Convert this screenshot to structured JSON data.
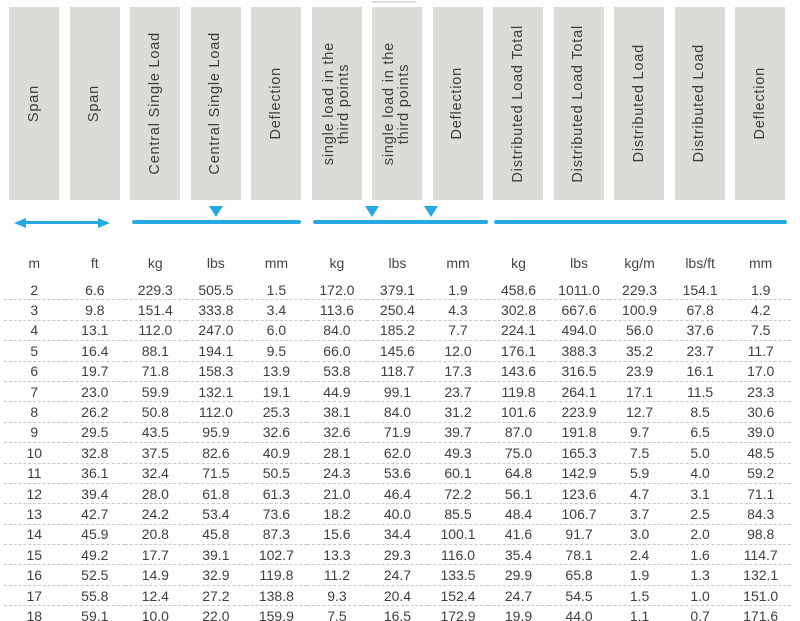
{
  "colors": {
    "header_box": "#dcdbd8",
    "accent_blue": "#29a9e1",
    "text": "#404040",
    "row_divider": "#c9c9c9"
  },
  "diagrams": {
    "span": "double-arrow",
    "central_single_load": "beam-line-with-center-load-marker",
    "third_point_load": "beam-line-with-two-third-point-markers",
    "distributed_load": "beam-line"
  },
  "table": {
    "columns": [
      {
        "header": "Span",
        "unit": "m"
      },
      {
        "header": "Span",
        "unit": "ft"
      },
      {
        "header": "Central Single Load",
        "unit": "kg"
      },
      {
        "header": "Central Single Load",
        "unit": "lbs"
      },
      {
        "header": "Deflection",
        "unit": "mm"
      },
      {
        "header": "single load in the\nthird points",
        "unit": "kg"
      },
      {
        "header": "single load in the\nthird points",
        "unit": "lbs"
      },
      {
        "header": "Deflection",
        "unit": "mm"
      },
      {
        "header": "Distributed Load Total",
        "unit": "kg"
      },
      {
        "header": "Distributed Load Total",
        "unit": "lbs"
      },
      {
        "header": "Distributed Load",
        "unit": "kg/m"
      },
      {
        "header": "Distributed Load",
        "unit": "lbs/ft"
      },
      {
        "header": "Deflection",
        "unit": "mm"
      }
    ],
    "rows": [
      [
        "2",
        "6.6",
        "229.3",
        "505.5",
        "1.5",
        "172.0",
        "379.1",
        "1.9",
        "458.6",
        "1011.0",
        "229.3",
        "154.1",
        "1.9"
      ],
      [
        "3",
        "9.8",
        "151.4",
        "333.8",
        "3.4",
        "113.6",
        "250.4",
        "4.3",
        "302.8",
        "667.6",
        "100.9",
        "67.8",
        "4.2"
      ],
      [
        "4",
        "13.1",
        "112.0",
        "247.0",
        "6.0",
        "84.0",
        "185.2",
        "7.7",
        "224.1",
        "494.0",
        "56.0",
        "37.6",
        "7.5"
      ],
      [
        "5",
        "16.4",
        "88.1",
        "194.1",
        "9.5",
        "66.0",
        "145.6",
        "12.0",
        "176.1",
        "388.3",
        "35.2",
        "23.7",
        "11.7"
      ],
      [
        "6",
        "19.7",
        "71.8",
        "158.3",
        "13.9",
        "53.8",
        "118.7",
        "17.3",
        "143.6",
        "316.5",
        "23.9",
        "16.1",
        "17.0"
      ],
      [
        "7",
        "23.0",
        "59.9",
        "132.1",
        "19.1",
        "44.9",
        "99.1",
        "23.7",
        "119.8",
        "264.1",
        "17.1",
        "11.5",
        "23.3"
      ],
      [
        "8",
        "26.2",
        "50.8",
        "112.0",
        "25.3",
        "38.1",
        "84.0",
        "31.2",
        "101.6",
        "223.9",
        "12.7",
        "8.5",
        "30.6"
      ],
      [
        "9",
        "29.5",
        "43.5",
        "95.9",
        "32.6",
        "32.6",
        "71.9",
        "39.7",
        "87.0",
        "191.8",
        "9.7",
        "6.5",
        "39.0"
      ],
      [
        "10",
        "32.8",
        "37.5",
        "82.6",
        "40.9",
        "28.1",
        "62.0",
        "49.3",
        "75.0",
        "165.3",
        "7.5",
        "5.0",
        "48.5"
      ],
      [
        "11",
        "36.1",
        "32.4",
        "71.5",
        "50.5",
        "24.3",
        "53.6",
        "60.1",
        "64.8",
        "142.9",
        "5.9",
        "4.0",
        "59.2"
      ],
      [
        "12",
        "39.4",
        "28.0",
        "61.8",
        "61.3",
        "21.0",
        "46.4",
        "72.2",
        "56.1",
        "123.6",
        "4.7",
        "3.1",
        "71.1"
      ],
      [
        "13",
        "42.7",
        "24.2",
        "53.4",
        "73.6",
        "18.2",
        "40.0",
        "85.5",
        "48.4",
        "106.7",
        "3.7",
        "2.5",
        "84.3"
      ],
      [
        "14",
        "45.9",
        "20.8",
        "45.8",
        "87.3",
        "15.6",
        "34.4",
        "100.1",
        "41.6",
        "91.7",
        "3.0",
        "2.0",
        "98.8"
      ],
      [
        "15",
        "49.2",
        "17.7",
        "39.1",
        "102.7",
        "13.3",
        "29.3",
        "116.0",
        "35.4",
        "78.1",
        "2.4",
        "1.6",
        "114.7"
      ],
      [
        "16",
        "52.5",
        "14.9",
        "32.9",
        "119.8",
        "11.2",
        "24.7",
        "133.5",
        "29.9",
        "65.8",
        "1.9",
        "1.3",
        "132.1"
      ],
      [
        "17",
        "55.8",
        "12.4",
        "27.2",
        "138.8",
        "9.3",
        "20.4",
        "152.4",
        "24.7",
        "54.5",
        "1.5",
        "1.0",
        "151.0"
      ],
      [
        "18",
        "59.1",
        "10.0",
        "22.0",
        "159.9",
        "7.5",
        "16.5",
        "172.9",
        "19.9",
        "44.0",
        "1.1",
        "0.7",
        "171.6"
      ]
    ]
  },
  "chart_data": {
    "type": "table",
    "title": "Span load and deflection table",
    "columns": [
      "Span (m)",
      "Span (ft)",
      "Central Single Load (kg)",
      "Central Single Load (lbs)",
      "Deflection (mm)",
      "single load in the third points (kg)",
      "single load in the third points (lbs)",
      "Deflection (mm)",
      "Distributed Load Total (kg)",
      "Distributed Load Total (lbs)",
      "Distributed Load (kg/m)",
      "Distributed Load (lbs/ft)",
      "Deflection (mm)"
    ]
  }
}
